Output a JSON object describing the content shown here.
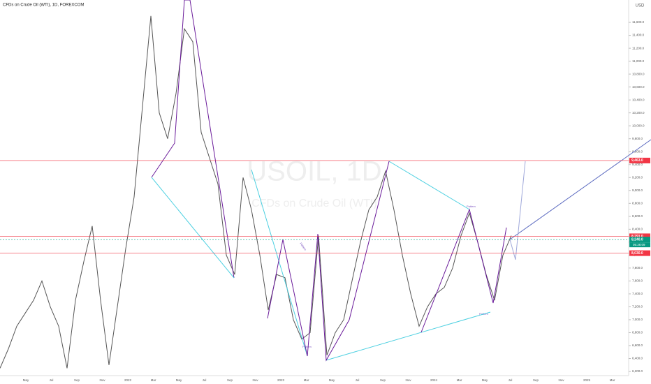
{
  "chart_data": {
    "type": "line",
    "title": "CFDs on Crude Oil (WTI), 1D, FOREXCOM",
    "currency": "USD",
    "watermark": "USOIL, 1D",
    "watermark_subtitle": "CFDs on Crude Oil (WTI)",
    "annotations": [
      "Pattern",
      "Pattern",
      "Pattern",
      "Pattern"
    ],
    "xticks": [
      "May",
      "Jul",
      "Sep",
      "Nov",
      "2022",
      "Mar",
      "May",
      "Jul",
      "Sep",
      "Nov",
      "2023",
      "Mar",
      "May",
      "Jul",
      "Sep",
      "Nov",
      "2024",
      "Mar",
      "May",
      "Jul",
      "Sep",
      "Nov",
      "2025",
      "Mar"
    ],
    "ylim": [
      6006,
      11946
    ],
    "yticks": [
      {
        "value": 6200,
        "label": "6,200.0"
      },
      {
        "value": 6400,
        "label": "6,400.0"
      },
      {
        "value": 6600,
        "label": "6,600.0"
      },
      {
        "value": 6800,
        "label": "6,800.0"
      },
      {
        "value": 7000,
        "label": "7,000.0"
      },
      {
        "value": 7200,
        "label": "7,200.0"
      },
      {
        "value": 7400,
        "label": "7,400.0"
      },
      {
        "value": 7600,
        "label": "7,600.0"
      },
      {
        "value": 7800,
        "label": "7,800.0"
      },
      {
        "value": 8000,
        "label": "8,000.0"
      },
      {
        "value": 8200,
        "label": "8,200.0"
      },
      {
        "value": 8400,
        "label": "8,400.0"
      },
      {
        "value": 8600,
        "label": "8,600.0"
      },
      {
        "value": 8800,
        "label": "8,800.0"
      },
      {
        "value": 9000,
        "label": "9,000.0"
      },
      {
        "value": 9200,
        "label": "9,200.0"
      },
      {
        "value": 9400,
        "label": "9,400.0"
      },
      {
        "value": 9600,
        "label": "9,600.0"
      },
      {
        "value": 9800,
        "label": "9,800.0"
      },
      {
        "value": 10000,
        "label": "10,000.0"
      },
      {
        "value": 10200,
        "label": "10,200.0"
      },
      {
        "value": 10400,
        "label": "10,400.0"
      },
      {
        "value": 10600,
        "label": "10,600.0"
      },
      {
        "value": 10800,
        "label": "10,800.0"
      },
      {
        "value": 11000,
        "label": "11,000.0"
      },
      {
        "value": 11200,
        "label": "11,200.0"
      },
      {
        "value": 11400,
        "label": "11,400.0"
      },
      {
        "value": 11600,
        "label": "11,600.0"
      }
    ],
    "series": [
      {
        "name": "USOIL",
        "color": "#555555",
        "values": [
          6250,
          6550,
          6900,
          7100,
          7300,
          7600,
          7200,
          6900,
          6250,
          7300,
          7900,
          8450,
          7300,
          6300,
          7200,
          8100,
          8900,
          10300,
          11700,
          10200,
          9800,
          10500,
          11500,
          11300,
          9900,
          9500,
          9100,
          8000,
          7700,
          9200,
          8700,
          8000,
          7150,
          7700,
          7650,
          7000,
          6700,
          6800,
          8300,
          6450,
          6800,
          7000,
          7600,
          8200,
          8700,
          8900,
          9300,
          8700,
          8000,
          7400,
          6900,
          7200,
          7400,
          7500,
          7800,
          8300,
          8650,
          8200,
          7700,
          7300,
          8000,
          8300
        ]
      }
    ],
    "price_lines": [
      {
        "value": 9463,
        "label": "9,463.0",
        "color": "#f23645"
      },
      {
        "value": 8291,
        "label": "8,291.0",
        "color": "#f23645"
      },
      {
        "value": 8240,
        "label": "8,240.0",
        "color": "#089981"
      },
      {
        "value": 8030,
        "label": "8,030.0",
        "color": "#f23645"
      }
    ],
    "countdown": "05:38:09"
  }
}
